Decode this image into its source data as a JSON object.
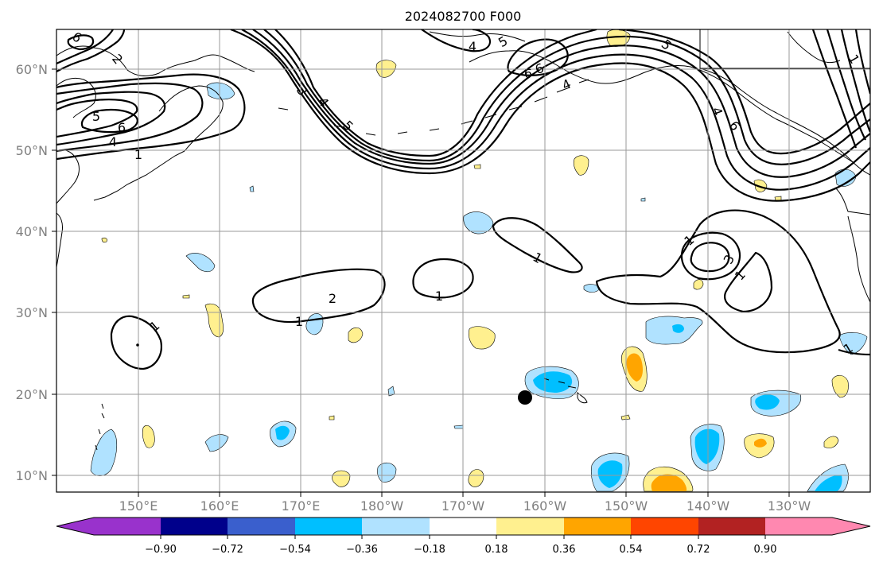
{
  "title": "2024082700 F000",
  "lat_labels": [
    "60°N",
    "50°N",
    "40°N",
    "30°N",
    "20°N",
    "10°N"
  ],
  "lon_labels": [
    "150°E",
    "160°E",
    "170°E",
    "180°W",
    "170°W",
    "160°W",
    "150°W",
    "140°W",
    "130°W"
  ],
  "colorbar": {
    "tick_labels": [
      "−0.90",
      "−0.72",
      "−0.54",
      "−0.36",
      "−0.18",
      "0.18",
      "0.36",
      "0.54",
      "0.72",
      "0.90"
    ],
    "colors": [
      "#9932cc",
      "#00008b",
      "#3a5fcd",
      "#00bfff",
      "#b0e2ff",
      "#ffffff",
      "#fff08f",
      "#ffa500",
      "#ff4500",
      "#b22222",
      "#ff88b0"
    ]
  },
  "contour_labels": [
    "6",
    "5",
    "6",
    "4",
    "1",
    "2",
    "3",
    "4",
    "5",
    "5",
    "4",
    "6",
    "4",
    "6",
    "5",
    "4",
    "6",
    "1",
    "1",
    "2",
    "1",
    "1",
    "1",
    "2",
    "3",
    "1",
    "1",
    "1"
  ]
}
